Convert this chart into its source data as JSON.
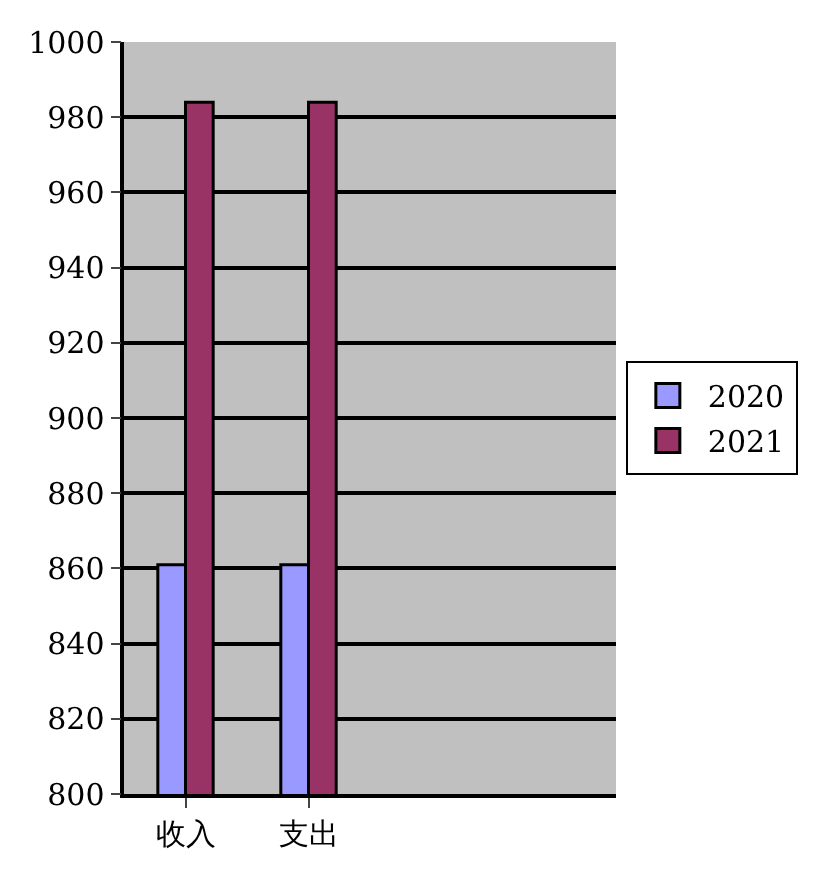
{
  "chart_data": {
    "type": "bar",
    "categories": [
      "收入",
      "支出",
      null,
      null
    ],
    "series": [
      {
        "name": "2020",
        "color": "#9999ff",
        "values": [
          861,
          861,
          null,
          null
        ]
      },
      {
        "name": "2021",
        "color": "#993366",
        "values": [
          984,
          984,
          null,
          null
        ]
      }
    ],
    "ylim": [
      800,
      1000
    ],
    "yticks": [
      800,
      820,
      840,
      860,
      880,
      900,
      920,
      940,
      960,
      980,
      1000
    ],
    "grid": "y",
    "legend": "right"
  }
}
